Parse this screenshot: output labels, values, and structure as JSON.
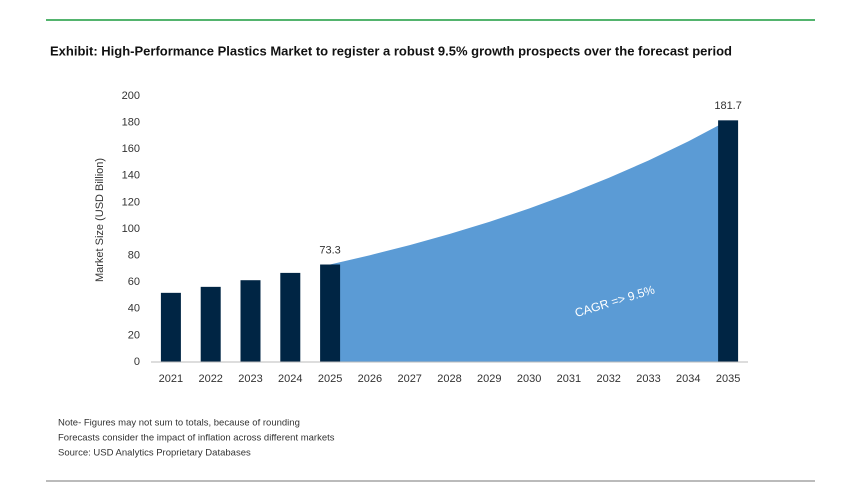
{
  "chart_data": {
    "type": "bar",
    "title": "Exhibit: High-Performance Plastics Market to register a robust 9.5% growth prospects over the forecast period",
    "y_label": "Market Size (USD Billion)",
    "categories": [
      "2021",
      "2022",
      "2023",
      "2024",
      "2025",
      "2026",
      "2027",
      "2028",
      "2029",
      "2030",
      "2031",
      "2032",
      "2033",
      "2034",
      "2035"
    ],
    "series": [
      {
        "type": "area",
        "color": "#5b9bd5",
        "values": [
          null,
          null,
          null,
          null,
          73.3,
          80.3,
          87.9,
          96.2,
          105.4,
          115.4,
          126.4,
          138.4,
          151.5,
          165.9,
          181.7
        ]
      },
      {
        "type": "bar",
        "color": "#002544",
        "values": [
          52,
          56.5,
          61.5,
          67,
          73.3,
          null,
          null,
          null,
          null,
          null,
          null,
          null,
          null,
          null,
          181.7
        ],
        "value_labels": [
          null,
          null,
          null,
          null,
          "73.3",
          null,
          null,
          null,
          null,
          null,
          null,
          null,
          null,
          null,
          "181.7"
        ]
      }
    ],
    "annotation": "CAGR =>  9.5%",
    "ylim": [
      0,
      200
    ],
    "yticks": [
      0,
      20,
      40,
      60,
      80,
      100,
      120,
      140,
      160,
      180,
      200
    ],
    "notes": [
      "Note- Figures may not sum to totals, because of rounding",
      "Forecasts consider the impact of inflation across different markets",
      "Source: USD Analytics Proprietary Databases"
    ]
  }
}
